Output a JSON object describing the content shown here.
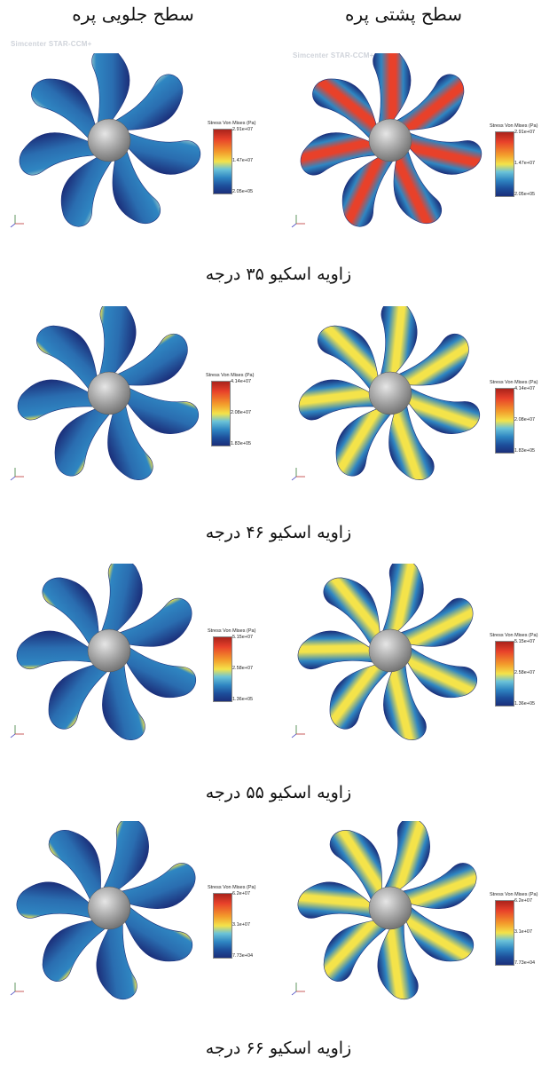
{
  "headers": {
    "front_surface": "سطح جلویی پره",
    "back_surface": "سطح پشتی پره"
  },
  "watermark_text": "Simcenter STAR-CCM+",
  "legend_title": "Stress Von Mises (Pa)",
  "rows": [
    {
      "caption": "زاویه اسکیو ۳۵ درجه",
      "front": {
        "max": "2.91e+07",
        "mid": "1.47e+07",
        "min": "2.05e+05"
      },
      "back": {
        "max": "2.91e+07",
        "mid": "1.47e+07",
        "min": "2.05e+05"
      }
    },
    {
      "caption": "زاویه اسکیو ۴۶ درجه",
      "front": {
        "max": "4.14e+07",
        "mid": "2.08e+07",
        "min": "1.83e+05"
      },
      "back": {
        "max": "4.14e+07",
        "mid": "2.08e+07",
        "min": "1.83e+05"
      }
    },
    {
      "caption": "زاویه اسکیو ۵۵ درجه",
      "front": {
        "max": "5.15e+07",
        "mid": "2.58e+07",
        "min": "1.36e+05"
      },
      "back": {
        "max": "5.15e+07",
        "mid": "2.58e+07",
        "min": "1.36e+05"
      }
    },
    {
      "caption": "زاویه اسکیو ۶۶ درجه",
      "front": {
        "max": "6.2e+07",
        "mid": "3.1e+07",
        "min": "7.73e+04"
      },
      "back": {
        "max": "6.2e+07",
        "mid": "3.1e+07",
        "min": "7.73e+04"
      }
    }
  ],
  "colors": {
    "low": "#1b2f7a",
    "midlow": "#2f86c2",
    "mid": "#f4e34a",
    "high": "#e8412a",
    "hub": "#9a9a9a"
  }
}
